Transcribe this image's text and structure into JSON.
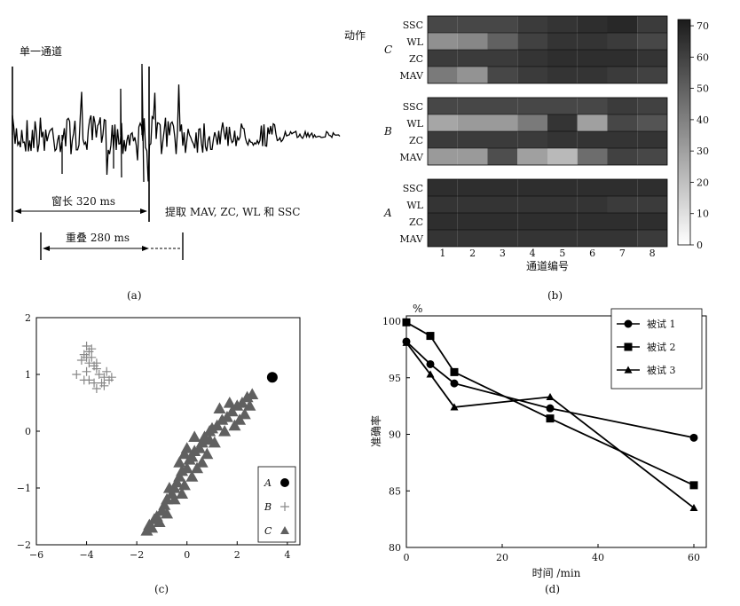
{
  "panels": {
    "a": {
      "caption": "(a)",
      "single_channel_label": "单一通道",
      "window_label": "窗长 320 ms",
      "overlap_label": "重叠 280 ms",
      "extract_label": "提取 MAV, ZC, WL 和 SSC"
    },
    "b": {
      "caption": "(b)"
    },
    "c": {
      "caption": "(c)"
    },
    "d": {
      "caption": "(d)"
    }
  },
  "chart_data": [
    {
      "type": "heatmap",
      "panel": "b",
      "actions_label": "动作",
      "xlabel": "通道编号",
      "x": [
        1,
        2,
        3,
        4,
        5,
        6,
        7,
        8
      ],
      "features": [
        "SSC",
        "WL",
        "ZC",
        "MAV"
      ],
      "groups": [
        {
          "name": "C",
          "rows": [
            {
              "feature": "SSC",
              "values": [
                58,
                58,
                58,
                62,
                64,
                66,
                68,
                62
              ]
            },
            {
              "feature": "WL",
              "values": [
                35,
                38,
                50,
                60,
                64,
                64,
                62,
                58
              ]
            },
            {
              "feature": "ZC",
              "values": [
                62,
                62,
                62,
                64,
                66,
                66,
                66,
                64
              ]
            },
            {
              "feature": "MAV",
              "values": [
                42,
                34,
                58,
                62,
                64,
                64,
                62,
                60
              ]
            }
          ]
        },
        {
          "name": "B",
          "rows": [
            {
              "feature": "SSC",
              "values": [
                58,
                58,
                58,
                58,
                58,
                58,
                62,
                60
              ]
            },
            {
              "feature": "WL",
              "values": [
                28,
                32,
                32,
                42,
                64,
                30,
                58,
                54
              ]
            },
            {
              "feature": "ZC",
              "values": [
                62,
                62,
                62,
                62,
                64,
                64,
                64,
                64
              ]
            },
            {
              "feature": "MAV",
              "values": [
                32,
                32,
                56,
                30,
                22,
                46,
                60,
                58
              ]
            }
          ]
        },
        {
          "name": "A",
          "rows": [
            {
              "feature": "SSC",
              "values": [
                66,
                66,
                66,
                66,
                66,
                66,
                66,
                66
              ]
            },
            {
              "feature": "WL",
              "values": [
                64,
                64,
                64,
                64,
                64,
                64,
                62,
                62
              ]
            },
            {
              "feature": "ZC",
              "values": [
                66,
                66,
                66,
                66,
                66,
                66,
                66,
                66
              ]
            },
            {
              "feature": "MAV",
              "values": [
                64,
                64,
                64,
                64,
                64,
                64,
                64,
                62
              ]
            }
          ]
        }
      ],
      "colorbar": {
        "range": [
          0,
          72
        ],
        "ticks": [
          0,
          10,
          20,
          30,
          40,
          50,
          60,
          70
        ]
      }
    },
    {
      "type": "scatter",
      "panel": "c",
      "xlim": [
        -6,
        4.5
      ],
      "ylim": [
        -2,
        2
      ],
      "xticks": [
        -6,
        -4,
        -2,
        0,
        2,
        4
      ],
      "yticks": [
        -2,
        -1,
        0,
        1,
        2
      ],
      "legend": "bottom-right",
      "series": [
        {
          "name": "A",
          "marker": "circle",
          "color": "#000000",
          "points": [
            [
              3.4,
              0.95
            ]
          ]
        },
        {
          "name": "B",
          "marker": "plus",
          "color": "#888888",
          "points": [
            [
              -4.0,
              1.5
            ],
            [
              -3.9,
              1.4
            ],
            [
              -4.1,
              1.35
            ],
            [
              -3.8,
              1.3
            ],
            [
              -3.9,
              1.2
            ],
            [
              -4.2,
              1.25
            ],
            [
              -3.7,
              1.15
            ],
            [
              -3.6,
              1.1
            ],
            [
              -4.0,
              1.05
            ],
            [
              -3.5,
              1.0
            ],
            [
              -3.3,
              0.95
            ],
            [
              -3.1,
              0.9
            ],
            [
              -3.4,
              0.85
            ],
            [
              -3.7,
              0.85
            ],
            [
              -3.9,
              0.9
            ],
            [
              -4.1,
              0.9
            ],
            [
              -4.4,
              1.0
            ],
            [
              -3.6,
              0.75
            ],
            [
              -3.2,
              1.05
            ],
            [
              -3.0,
              0.95
            ],
            [
              -3.3,
              0.8
            ],
            [
              -3.8,
              1.45
            ],
            [
              -4.0,
              1.3
            ],
            [
              -3.6,
              1.2
            ]
          ]
        },
        {
          "name": "C",
          "marker": "triangle",
          "color": "#606060",
          "points": [
            [
              -1.6,
              -1.75
            ],
            [
              -1.5,
              -1.65
            ],
            [
              -1.3,
              -1.55
            ],
            [
              -1.2,
              -1.5
            ],
            [
              -1.0,
              -1.4
            ],
            [
              -0.9,
              -1.3
            ],
            [
              -0.8,
              -1.2
            ],
            [
              -0.6,
              -1.1
            ],
            [
              -0.5,
              -1.0
            ],
            [
              -0.4,
              -0.9
            ],
            [
              -0.3,
              -0.8
            ],
            [
              -0.2,
              -0.7
            ],
            [
              0.0,
              -0.65
            ],
            [
              0.1,
              -0.5
            ],
            [
              0.2,
              -0.45
            ],
            [
              0.3,
              -0.35
            ],
            [
              0.5,
              -0.3
            ],
            [
              0.6,
              -0.2
            ],
            [
              0.7,
              -0.1
            ],
            [
              0.9,
              0.0
            ],
            [
              1.0,
              0.05
            ],
            [
              1.2,
              0.1
            ],
            [
              1.4,
              0.2
            ],
            [
              1.6,
              0.25
            ],
            [
              1.8,
              0.35
            ],
            [
              2.0,
              0.45
            ],
            [
              2.2,
              0.5
            ],
            [
              2.4,
              0.6
            ],
            [
              2.6,
              0.65
            ],
            [
              -0.3,
              -0.55
            ],
            [
              -0.1,
              -0.4
            ],
            [
              0.4,
              -0.65
            ],
            [
              0.2,
              -0.8
            ],
            [
              -0.5,
              -1.2
            ],
            [
              -1.1,
              -1.6
            ],
            [
              -0.7,
              -1.0
            ],
            [
              0.8,
              -0.4
            ],
            [
              1.1,
              -0.2
            ],
            [
              1.5,
              0.0
            ],
            [
              1.9,
              0.1
            ],
            [
              2.3,
              0.3
            ],
            [
              2.5,
              0.45
            ],
            [
              -0.1,
              -0.95
            ],
            [
              0.0,
              -0.3
            ],
            [
              0.3,
              -0.1
            ],
            [
              1.3,
              0.4
            ],
            [
              1.7,
              0.5
            ],
            [
              2.1,
              0.2
            ],
            [
              -0.8,
              -1.45
            ],
            [
              -1.4,
              -1.7
            ],
            [
              0.6,
              -0.55
            ],
            [
              -0.2,
              -1.1
            ],
            [
              0.9,
              -0.15
            ]
          ]
        }
      ]
    },
    {
      "type": "line",
      "panel": "d",
      "xlabel": "时间 /min",
      "ylabel": "准确率",
      "yunit": "%",
      "xlim": [
        0,
        60
      ],
      "ylim": [
        80,
        100
      ],
      "xticks": [
        0,
        20,
        40,
        60
      ],
      "yticks": [
        80,
        85,
        90,
        95,
        100
      ],
      "legend": "top-right",
      "series": [
        {
          "name": "被试 1",
          "marker": "circle",
          "x": [
            0,
            5,
            10,
            30,
            60
          ],
          "y": [
            98.2,
            96.2,
            94.5,
            92.3,
            89.7
          ]
        },
        {
          "name": "被试 2",
          "marker": "square",
          "x": [
            0,
            5,
            10,
            30,
            60
          ],
          "y": [
            99.9,
            98.7,
            95.5,
            91.4,
            85.5
          ]
        },
        {
          "name": "被试 3",
          "marker": "triangle",
          "x": [
            0,
            5,
            10,
            30,
            60
          ],
          "y": [
            98.1,
            95.3,
            92.4,
            93.3,
            83.5
          ]
        }
      ]
    }
  ]
}
